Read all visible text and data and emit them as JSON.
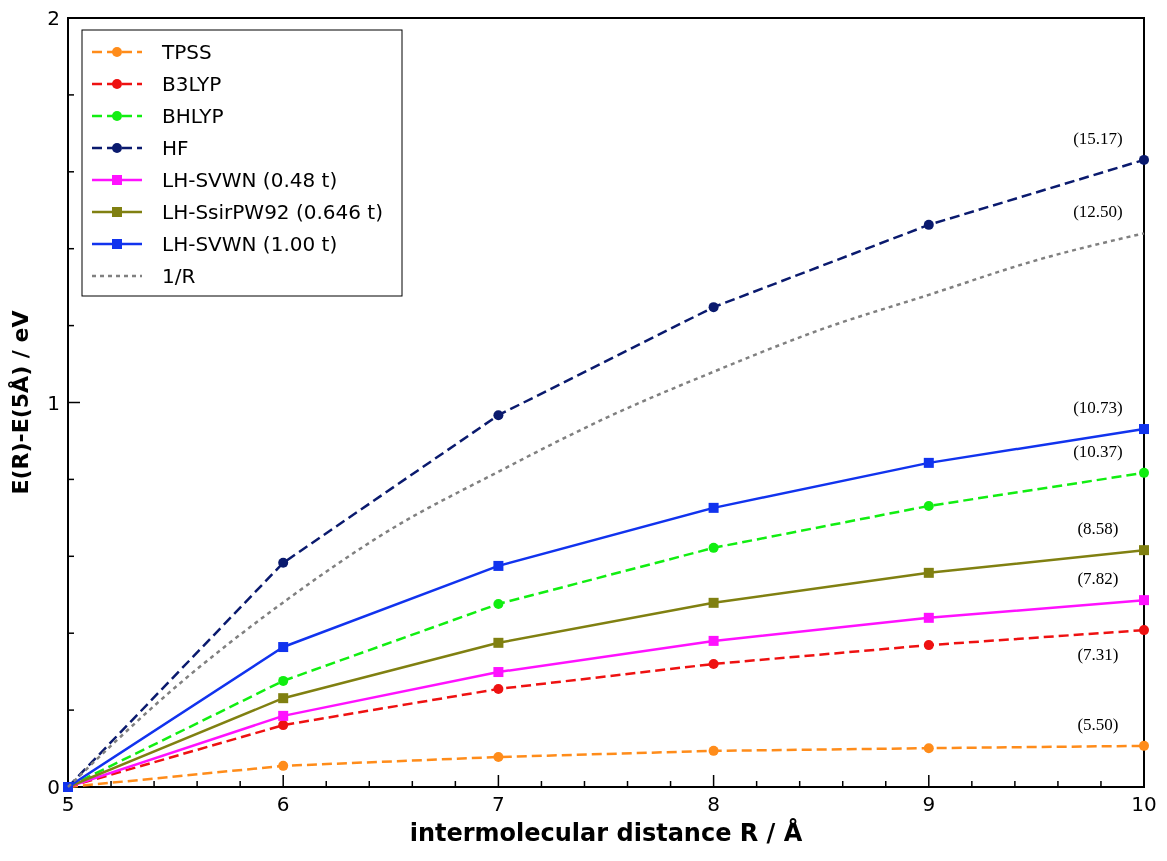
{
  "chart_data": {
    "type": "line",
    "xlabel": "intermolecular distance R / Å",
    "ylabel": "E(R)-E(5Å) / eV",
    "xlim": [
      5,
      10
    ],
    "ylim": [
      0,
      2
    ],
    "xticks": [
      5,
      {
        "value": 5.2,
        "label": null
      },
      {
        "value": 5.4,
        "label": null
      },
      {
        "value": 5.6,
        "label": null
      },
      {
        "value": 5.8,
        "label": null
      },
      6,
      {
        "value": 6.2,
        "label": null
      },
      {
        "value": 6.4,
        "label": null
      },
      {
        "value": 6.6,
        "label": null
      },
      {
        "value": 6.8,
        "label": null
      },
      7,
      {
        "value": 7.2,
        "label": null
      },
      {
        "value": 7.4,
        "label": null
      },
      {
        "value": 7.6,
        "label": null
      },
      {
        "value": 7.8,
        "label": null
      },
      8,
      {
        "value": 8.2,
        "label": null
      },
      {
        "value": 8.4,
        "label": null
      },
      {
        "value": 8.6,
        "label": null
      },
      {
        "value": 8.8,
        "label": null
      },
      9,
      {
        "value": 9.2,
        "label": null
      },
      {
        "value": 9.4,
        "label": null
      },
      {
        "value": 9.6,
        "label": null
      },
      {
        "value": 9.8,
        "label": null
      },
      10
    ],
    "yticks": [
      0,
      {
        "value": 0.2,
        "label": null
      },
      {
        "value": 0.4,
        "label": null
      },
      {
        "value": 0.6,
        "label": null
      },
      {
        "value": 0.8,
        "label": null
      },
      1,
      {
        "value": 1.2,
        "label": null
      },
      {
        "value": 1.4,
        "label": null
      },
      {
        "value": 1.6,
        "label": null
      },
      {
        "value": 1.8,
        "label": null
      },
      2
    ],
    "grid": false,
    "legend": "top left",
    "series": [
      {
        "name": "TPSS",
        "color": "#ff8c1a",
        "marker": "circle",
        "line_style": "dashed",
        "x": [
          5,
          6,
          7,
          8,
          9,
          10
        ],
        "values": [
          0,
          0.055,
          0.078,
          0.094,
          0.101,
          0.107
        ]
      },
      {
        "name": "B3LYP",
        "color": "#ee1111",
        "marker": "circle",
        "line_style": "dashed",
        "x": [
          5,
          6,
          7,
          8,
          9,
          10
        ],
        "values": [
          0,
          0.161,
          0.255,
          0.32,
          0.369,
          0.408
        ]
      },
      {
        "name": "BHLYP",
        "color": "#11ee11",
        "marker": "circle",
        "line_style": "dashed",
        "x": [
          5,
          6,
          7,
          8,
          9,
          10
        ],
        "values": [
          0,
          0.276,
          0.476,
          0.622,
          0.731,
          0.817
        ]
      },
      {
        "name": "HF",
        "color": "#0a1a6e",
        "marker": "circle",
        "line_style": "dashed",
        "x": [
          5,
          6,
          7,
          8,
          9,
          10
        ],
        "values": [
          0,
          0.583,
          0.967,
          1.248,
          1.462,
          1.631
        ]
      },
      {
        "name": "LH-SVWN (0.48 t)",
        "color": "#ff11ff",
        "marker": "square",
        "line_style": "solid",
        "x": [
          5,
          6,
          7,
          8,
          9,
          10
        ],
        "values": [
          0,
          0.185,
          0.299,
          0.38,
          0.44,
          0.486
        ]
      },
      {
        "name": "LH-SsirPW92 (0.646 t)",
        "color": "#808011",
        "marker": "square",
        "line_style": "solid",
        "x": [
          5,
          6,
          7,
          8,
          9,
          10
        ],
        "values": [
          0,
          0.231,
          0.375,
          0.479,
          0.557,
          0.616
        ]
      },
      {
        "name": "LH-SVWN (1.00 t)",
        "color": "#1133ee",
        "marker": "square",
        "line_style": "solid",
        "x": [
          5,
          6,
          7,
          8,
          9,
          10
        ],
        "values": [
          0,
          0.364,
          0.575,
          0.726,
          0.843,
          0.931
        ]
      },
      {
        "name": "1/R",
        "color": "#808080",
        "marker": "none",
        "line_style": "dotted",
        "x": [
          5,
          5.5,
          6,
          6.5,
          7,
          7.5,
          8,
          8.5,
          9,
          9.5,
          10
        ],
        "values": [
          0,
          0.26,
          0.48,
          0.67,
          0.82,
          0.96,
          1.08,
          1.19,
          1.28,
          1.37,
          1.44
        ]
      }
    ],
    "annotations": [
      "(15.17)",
      "(12.50)",
      "(10.73)",
      "(10.37)",
      "(8.58)",
      "(7.82)",
      "(7.31)",
      "(5.50)"
    ]
  }
}
